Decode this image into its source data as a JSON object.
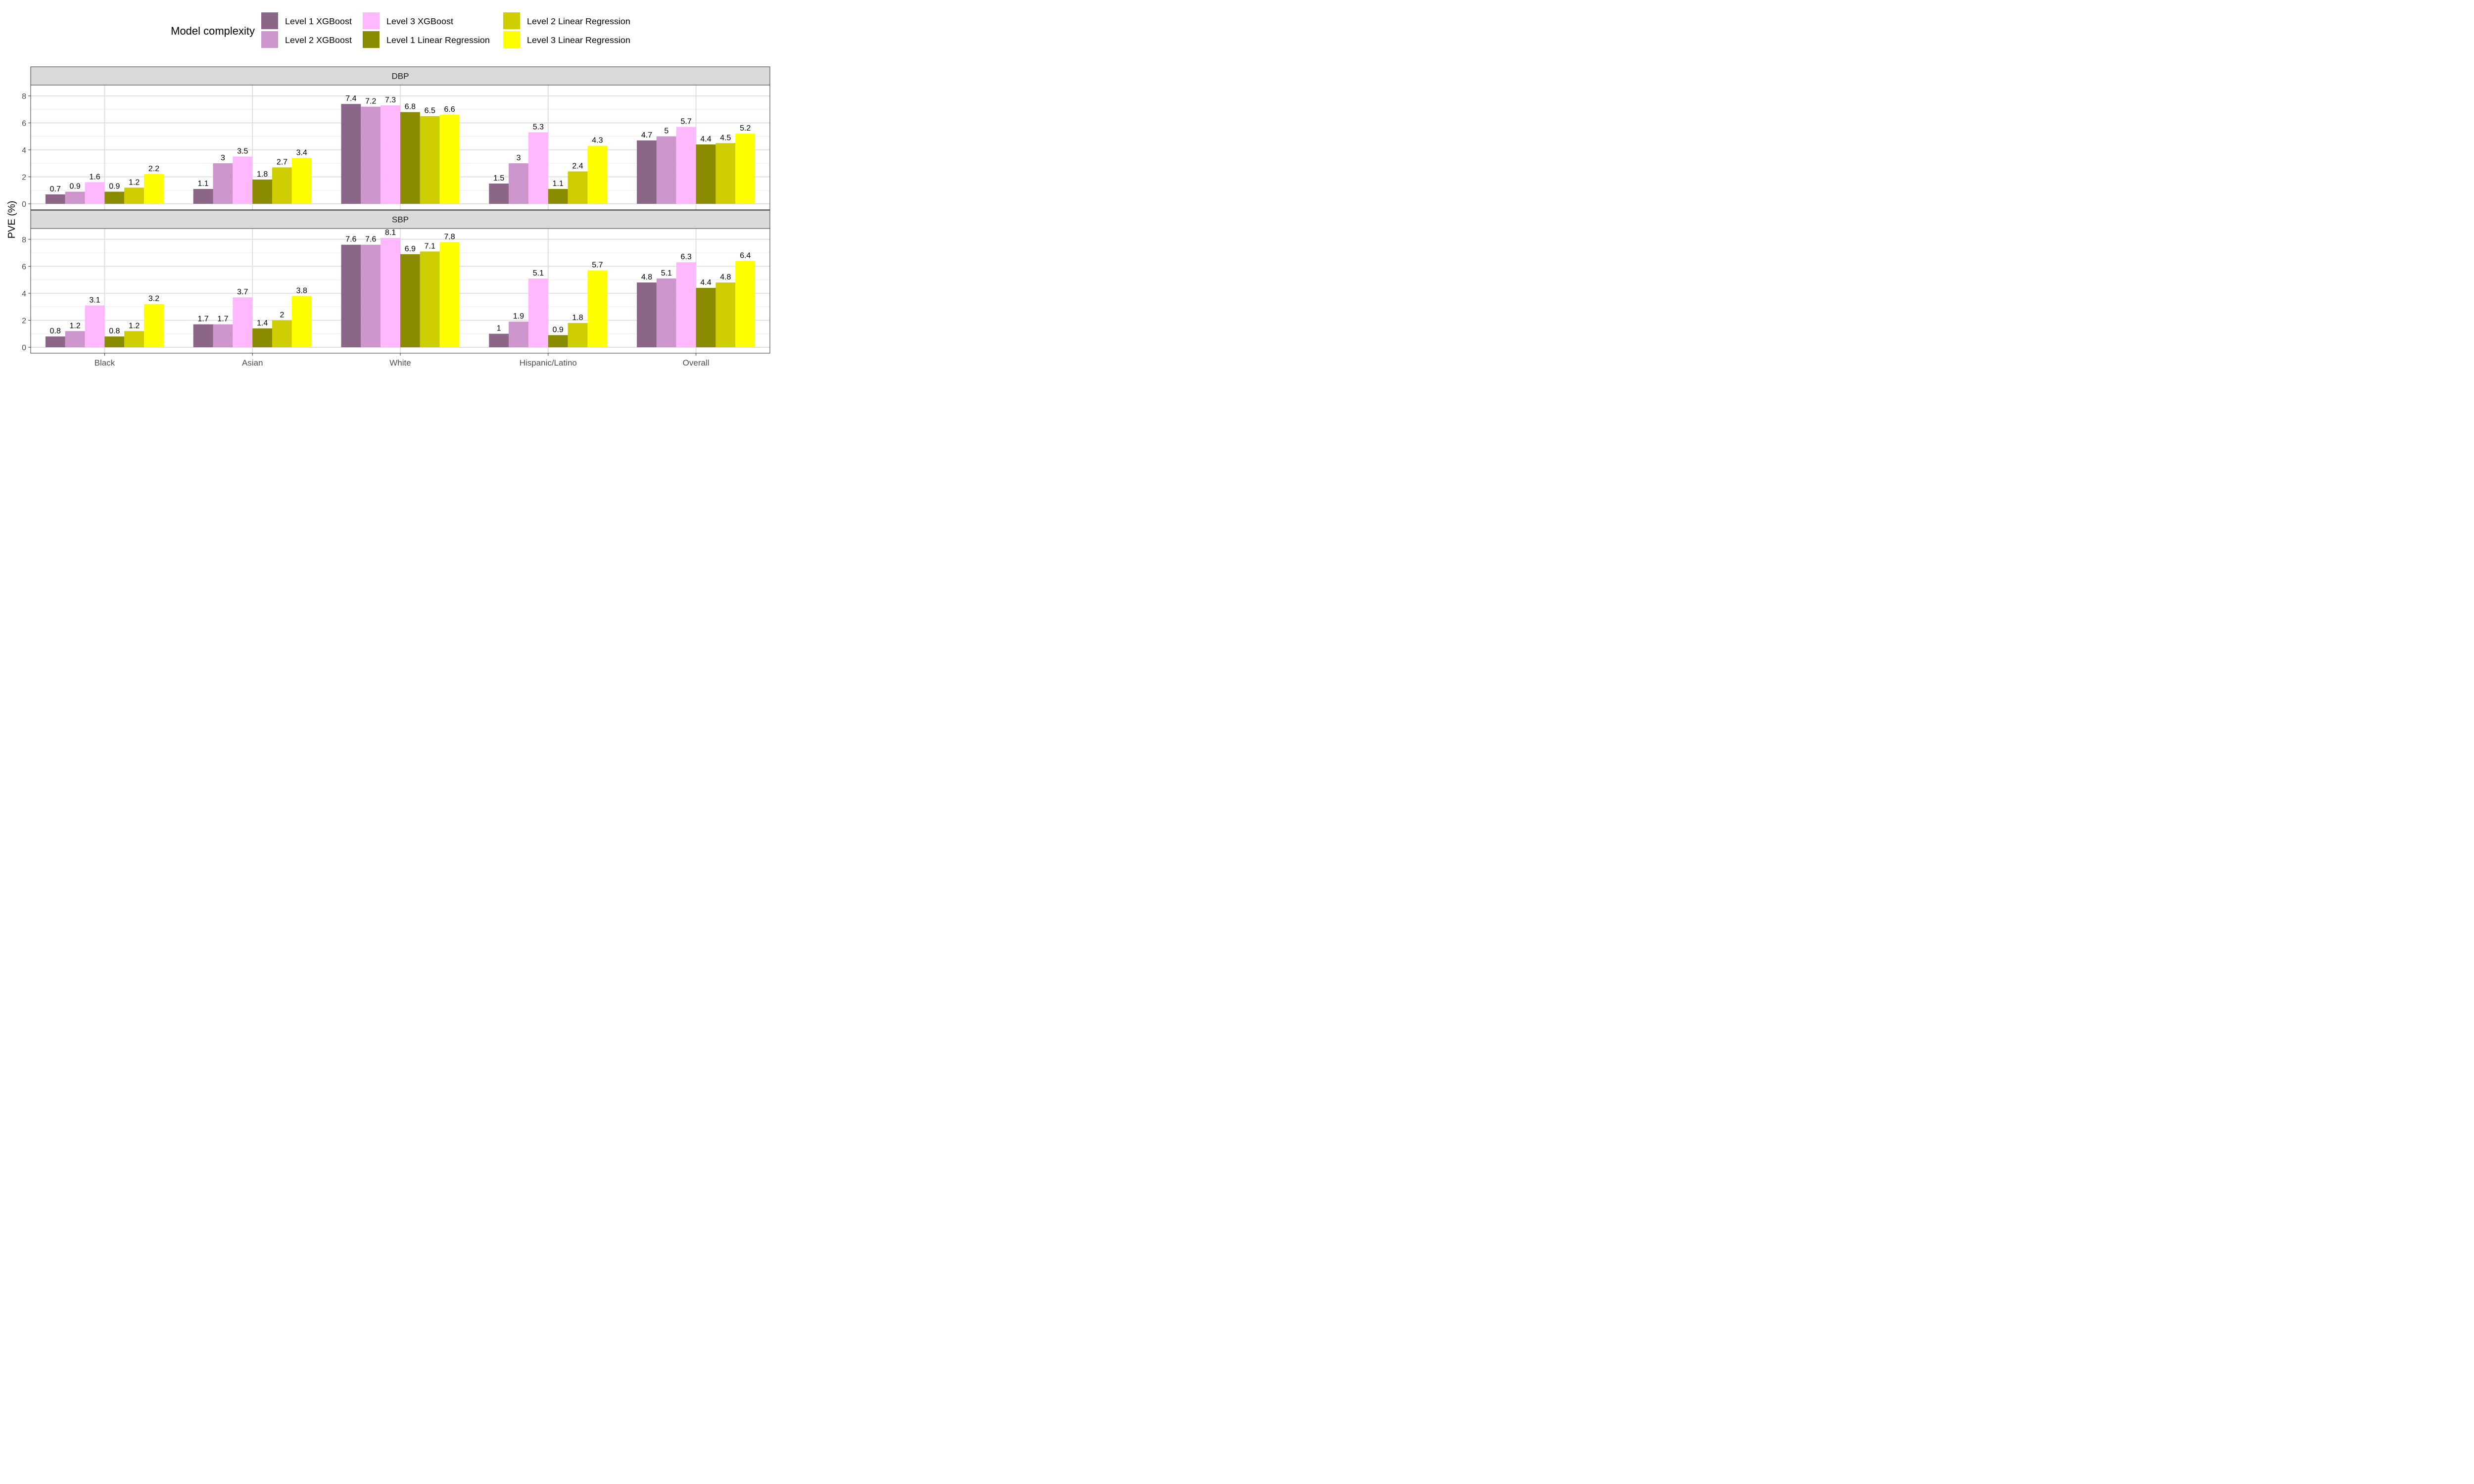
{
  "chart_data": {
    "type": "bar",
    "ylabel": "PVE (%)",
    "xlabel": "",
    "legend_title": "Model complexity",
    "legend_position": "top",
    "grid": true,
    "ylim": [
      0,
      8.8
    ],
    "yticks": [
      0,
      2,
      4,
      6,
      8
    ],
    "categories": [
      "Black",
      "Asian",
      "White",
      "Hispanic/Latino",
      "Overall"
    ],
    "series_names": [
      "Level 1 XGBoost",
      "Level 2 XGBoost",
      "Level 3 XGBoost",
      "Level 1 Linear Regression",
      "Level 2 Linear Regression",
      "Level 3 Linear Regression"
    ],
    "series_colors": [
      "#8b6688",
      "#cc95cc",
      "#ffb8fc",
      "#8b8b00",
      "#cdcd00",
      "#ffff00"
    ],
    "facets": [
      {
        "title": "DBP",
        "series": [
          {
            "name": "Level 1 XGBoost",
            "values": [
              0.7,
              1.1,
              7.4,
              1.5,
              4.7
            ]
          },
          {
            "name": "Level 2 XGBoost",
            "values": [
              0.9,
              3,
              7.2,
              3,
              5
            ]
          },
          {
            "name": "Level 3 XGBoost",
            "values": [
              1.6,
              3.5,
              7.3,
              5.3,
              5.7
            ]
          },
          {
            "name": "Level 1 Linear Regression",
            "values": [
              0.9,
              1.8,
              6.8,
              1.1,
              4.4
            ]
          },
          {
            "name": "Level 2 Linear Regression",
            "values": [
              1.2,
              2.7,
              6.5,
              2.4,
              4.5
            ]
          },
          {
            "name": "Level 3 Linear Regression",
            "values": [
              2.2,
              3.4,
              6.6,
              4.3,
              5.2
            ]
          }
        ]
      },
      {
        "title": "SBP",
        "series": [
          {
            "name": "Level 1 XGBoost",
            "values": [
              0.8,
              1.7,
              7.6,
              1,
              4.8
            ]
          },
          {
            "name": "Level 2 XGBoost",
            "values": [
              1.2,
              1.7,
              7.6,
              1.9,
              5.1
            ]
          },
          {
            "name": "Level 3 XGBoost",
            "values": [
              3.1,
              3.7,
              8.1,
              5.1,
              6.3
            ]
          },
          {
            "name": "Level 1 Linear Regression",
            "values": [
              0.8,
              1.4,
              6.9,
              0.9,
              4.4
            ]
          },
          {
            "name": "Level 2 Linear Regression",
            "values": [
              1.2,
              2,
              7.1,
              1.8,
              4.8
            ]
          },
          {
            "name": "Level 3 Linear Regression",
            "values": [
              3.2,
              3.8,
              7.8,
              5.7,
              6.4
            ]
          }
        ]
      }
    ]
  }
}
